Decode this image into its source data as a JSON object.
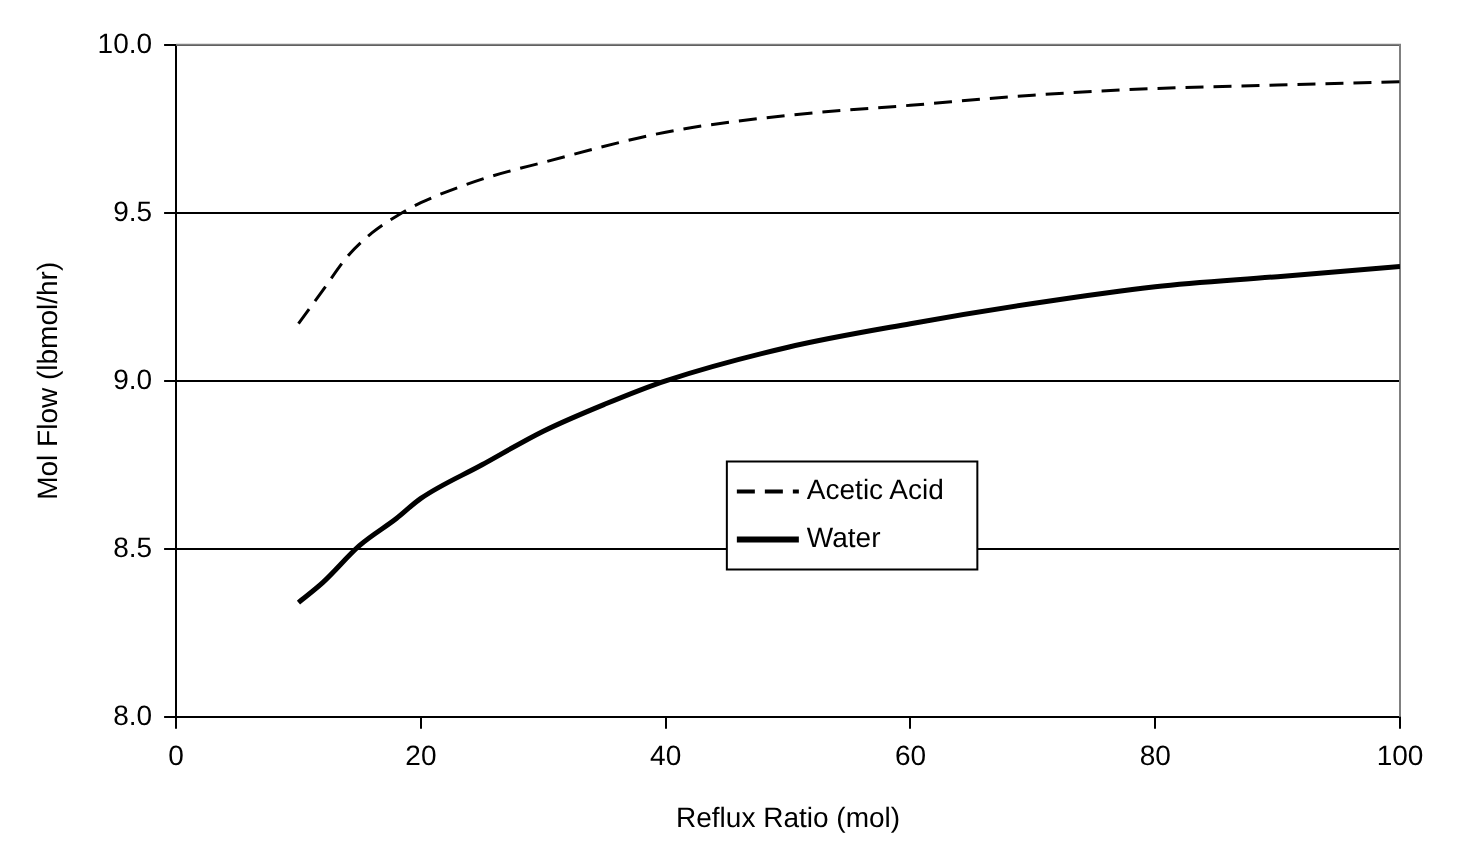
{
  "chart_data": {
    "type": "line",
    "xlabel": "Reflux Ratio (mol)",
    "ylabel": "Mol Flow (lbmol/hr)",
    "xlim": [
      0,
      100
    ],
    "xticks": [
      0,
      20,
      40,
      60,
      80,
      100
    ],
    "ylim": [
      8.0,
      10.0
    ],
    "yticks": [
      {
        "value": 8,
        "label": "8.0"
      },
      {
        "value": 8.5,
        "label": "8.5"
      },
      {
        "value": 9,
        "label": "9.0"
      },
      {
        "value": 9.5,
        "label": "9.5"
      },
      {
        "value": 10,
        "label": "10.0"
      }
    ],
    "grid": "y",
    "legend": "right",
    "marker": "none",
    "series": [
      {
        "name": "Acetic Acid",
        "color": "#000000",
        "line_style": "dashed",
        "x": [
          10,
          12,
          14,
          16,
          18,
          20,
          25,
          30,
          40,
          50,
          60,
          70,
          80,
          90,
          100
        ],
        "values": [
          9.17,
          9.27,
          9.37,
          9.44,
          9.49,
          9.53,
          9.6,
          9.65,
          9.74,
          9.79,
          9.82,
          9.85,
          9.87,
          9.88,
          9.89
        ]
      },
      {
        "name": "Water",
        "color": "#000000",
        "line_style": "solid",
        "x": [
          10,
          12,
          15,
          18,
          20,
          25,
          30,
          35,
          40,
          50,
          60,
          70,
          80,
          90,
          100
        ],
        "values": [
          8.34,
          8.4,
          8.51,
          8.59,
          8.65,
          8.75,
          8.85,
          8.93,
          9.0,
          9.1,
          9.17,
          9.23,
          9.28,
          9.31,
          9.34
        ]
      }
    ]
  }
}
